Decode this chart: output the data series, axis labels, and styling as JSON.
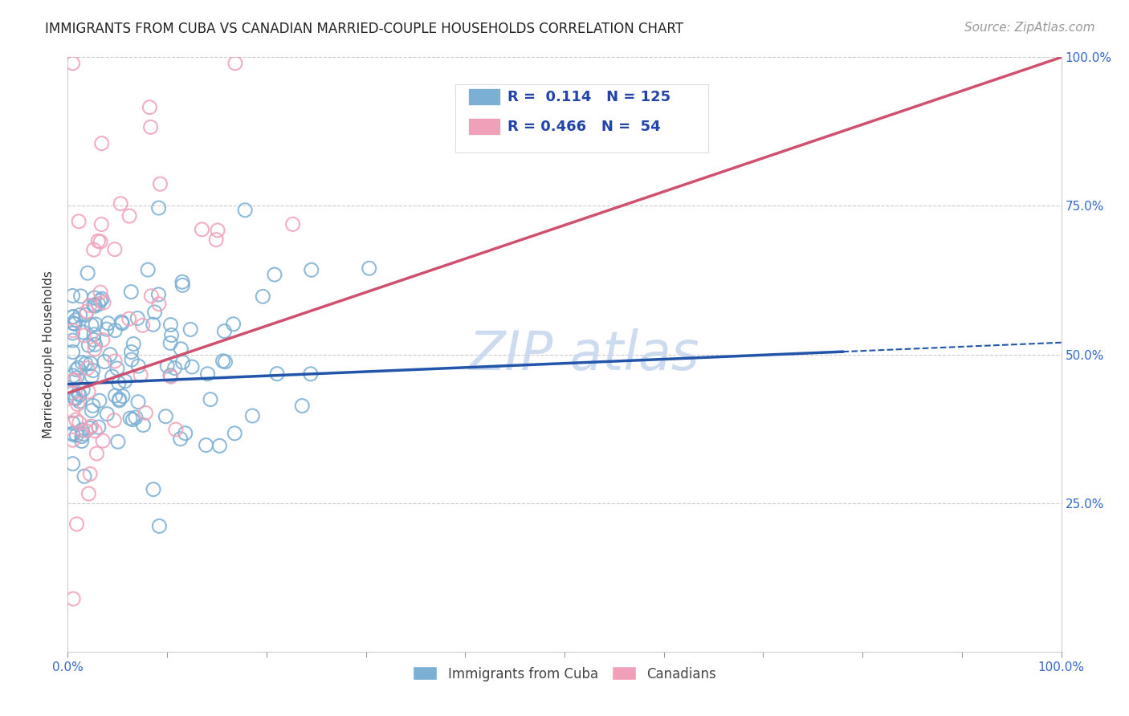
{
  "title": "IMMIGRANTS FROM CUBA VS CANADIAN MARRIED-COUPLE HOUSEHOLDS CORRELATION CHART",
  "source": "Source: ZipAtlas.com",
  "ylabel": "Married-couple Households",
  "xlim": [
    0,
    1.0
  ],
  "ylim": [
    0,
    1.0
  ],
  "grid_color": "#cccccc",
  "blue_color": "#7BAFD4",
  "pink_color": "#F0A0B8",
  "blue_line_color": "#2255AA",
  "pink_line_color": "#D05070",
  "background_color": "#ffffff",
  "watermark_text": "ZIP atlas",
  "watermark_color": "#C8D8F0",
  "legend_R1": "0.114",
  "legend_N1": "125",
  "legend_R2": "0.466",
  "legend_N2": "54",
  "series1_label": "Immigrants from Cuba",
  "series2_label": "Canadians",
  "title_fontsize": 12,
  "source_fontsize": 11,
  "axis_label_fontsize": 11,
  "tick_fontsize": 11,
  "blue_line_start_y": 0.45,
  "blue_line_end_y": 0.52,
  "pink_line_start_y": 0.435,
  "pink_line_end_y": 1.0
}
